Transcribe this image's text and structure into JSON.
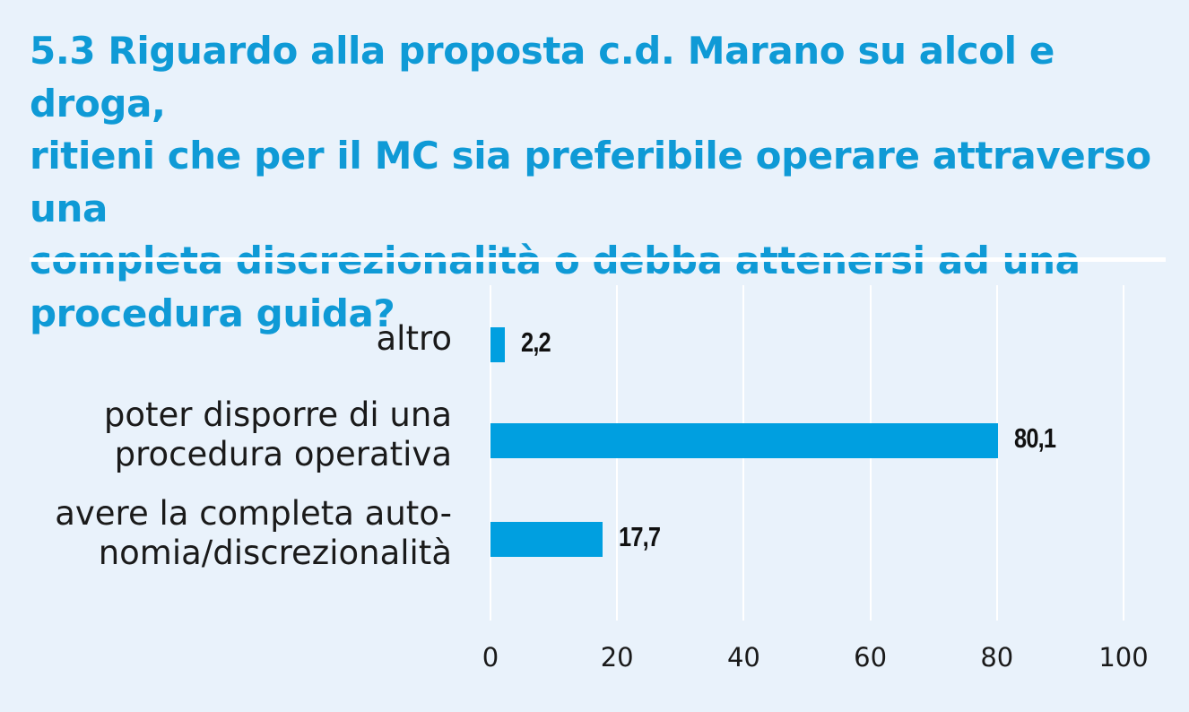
{
  "chart_data": {
    "type": "bar",
    "orientation": "horizontal",
    "title": "5.3 Riguardo alla proposta c.d. Marano su alcol e droga, ritieni che per il MC sia preferibile operare attraverso una completa discrezionalità o debba attenersi ad una procedura guida?",
    "title_lines": [
      "5.3 Riguardo alla proposta c.d. Marano su alcol e droga,",
      "ritieni che per il MC sia preferibile operare attraverso una",
      "completa discrezionalità o debba attenersi ad una",
      "procedura guida?"
    ],
    "categories": [
      [
        "altro"
      ],
      [
        "poter disporre di una",
        "procedura operativa"
      ],
      [
        "avere la completa auto-",
        "nomia/discrezionalità"
      ]
    ],
    "values": [
      2.2,
      80.1,
      17.7
    ],
    "value_labels": [
      "2,2",
      "80,1",
      "17,7"
    ],
    "xlim": [
      0,
      100
    ],
    "xticks": [
      0,
      20,
      40,
      60,
      80,
      100
    ],
    "grid": true,
    "bar_color": "#009fe0",
    "title_color": "#0f9ad6",
    "background": "#e9f2fb"
  }
}
